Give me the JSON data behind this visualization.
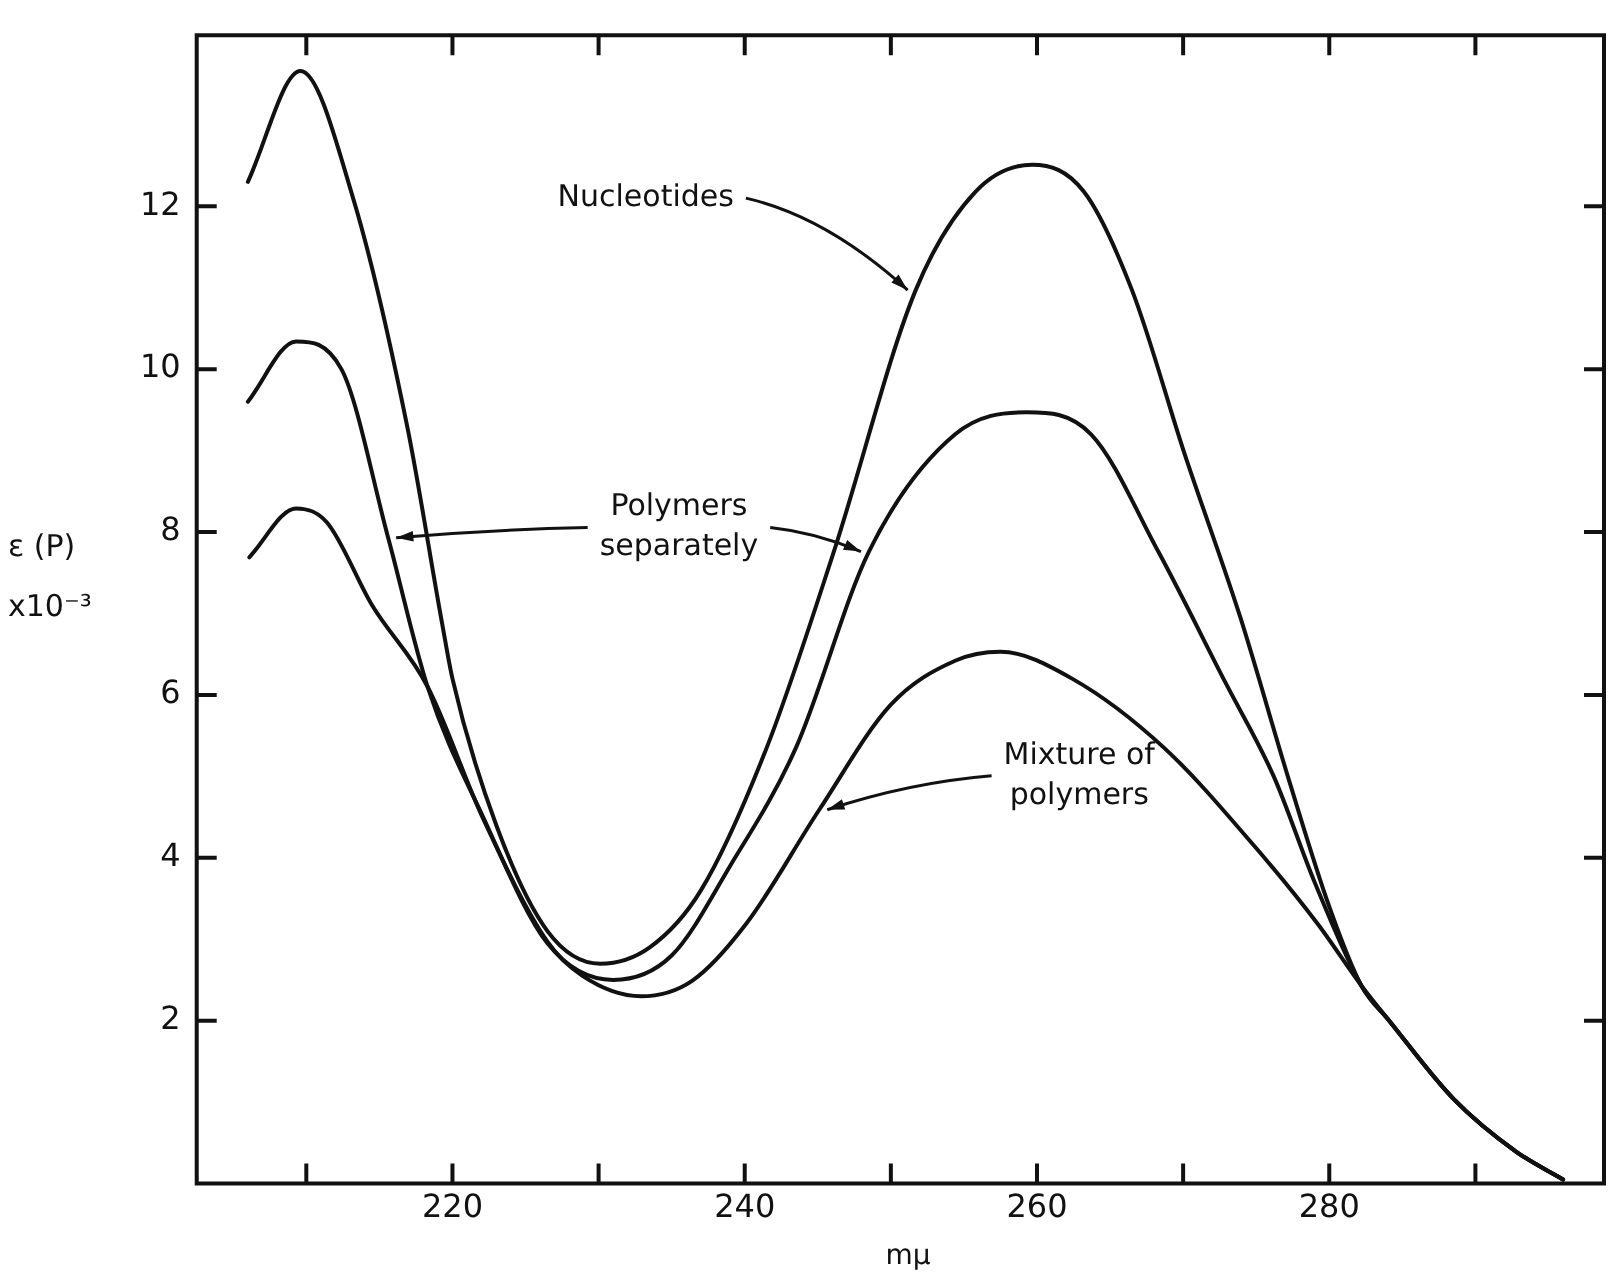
{
  "chart_data": {
    "type": "line",
    "xlabel": "mμ",
    "ylabel": "ε (P) x10⁻³",
    "xlim": [
      202.5,
      298.8
    ],
    "ylim": [
      0,
      14.1
    ],
    "xticks": [
      {
        "value": 210,
        "label": null
      },
      220,
      {
        "value": 230,
        "label": null
      },
      240,
      {
        "value": 250,
        "label": null
      },
      260,
      {
        "value": 270,
        "label": null
      },
      280,
      {
        "value": 290,
        "label": null
      }
    ],
    "yticks": [
      2,
      4,
      6,
      8,
      10,
      12
    ],
    "annotations": [
      {
        "text": "Nucleotides",
        "x": 251.7,
        "y": 10.97
      },
      {
        "text": "Polymers separately",
        "x": 248.5,
        "y": 7.76
      },
      {
        "text": "Mixture of polymers",
        "x": 245.1,
        "y": 4.59
      }
    ],
    "grid": false,
    "legend": false,
    "marker": "none",
    "line_style": "solid",
    "series": [
      {
        "color": "#111111",
        "x": [
          206,
          209.6,
          213.2,
          216.9,
          219.3,
          220,
          223,
          226.5,
          230.1,
          233.5,
          237,
          241.5,
          246.1,
          251.7,
          255.8,
          259.7,
          263.2,
          266.5,
          270.1,
          273.9,
          277.3,
          280,
          282.2,
          284.1,
          288.5,
          292.8,
          296
        ],
        "values": [
          12.3,
          13.66,
          12.1,
          9.3,
          6.87,
          6.2,
          4.4,
          3.1,
          2.7,
          2.9,
          3.6,
          5.35,
          7.76,
          10.97,
          12.18,
          12.51,
          12.18,
          10.97,
          8.96,
          6.96,
          4.92,
          3.4,
          2.43,
          2.0,
          1.04,
          0.39,
          0.05
        ]
      },
      {
        "color": "#111111",
        "x": [
          206,
          209.3,
          212.4,
          215.6,
          218.3,
          222.1,
          226.5,
          231,
          235,
          239,
          243.5,
          248.5,
          254.4,
          259.3,
          263.7,
          268.3,
          272.9,
          276.2,
          279,
          282.2,
          284.1,
          288.5,
          292.8,
          296
        ],
        "values": [
          9.6,
          10.34,
          10.0,
          7.93,
          6.1,
          4.5,
          2.95,
          2.5,
          2.8,
          3.9,
          5.35,
          7.76,
          9.2,
          9.47,
          9.2,
          7.76,
          6.15,
          5.0,
          3.7,
          2.43,
          2.0,
          1.04,
          0.39,
          0.05
        ]
      },
      {
        "color": "#111111",
        "x": [
          206.1,
          209.3,
          211.4,
          214.5,
          218.3,
          222.1,
          226.5,
          228.9,
          232.9,
          236.4,
          240.1,
          245.1,
          250,
          254.4,
          257.5,
          262.4,
          268.7,
          274.8,
          279.2,
          282.2,
          284.1,
          288.5,
          292.8,
          296
        ],
        "values": [
          7.69,
          8.29,
          8.12,
          7.1,
          6.1,
          4.48,
          2.97,
          2.55,
          2.3,
          2.49,
          3.19,
          4.59,
          5.88,
          6.42,
          6.53,
          6.2,
          5.35,
          4.16,
          3.19,
          2.43,
          2.0,
          1.04,
          0.39,
          0.05
        ]
      }
    ]
  }
}
